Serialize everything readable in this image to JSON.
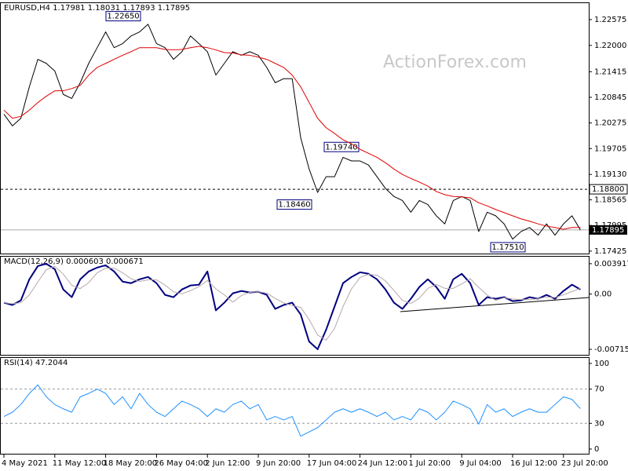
{
  "chart_data": [
    {
      "type": "line",
      "title": "EURUSD,H4 1.17981 1.18031 1.17893 1.17895",
      "watermark": "ActionForex.com",
      "categories": [
        "4 May 2021",
        null,
        null,
        null,
        null,
        null,
        "11 May 12:00",
        null,
        null,
        null,
        null,
        null,
        "18 May 20:00",
        null,
        null,
        null,
        null,
        null,
        "26 May 04:00",
        null,
        null,
        null,
        null,
        null,
        "2 Jun 12:00",
        null,
        null,
        null,
        null,
        null,
        "9 Jun 20:00",
        null,
        null,
        null,
        null,
        null,
        "17 Jun 04:00",
        null,
        null,
        null,
        null,
        null,
        "24 Jun 12:00",
        null,
        null,
        null,
        null,
        null,
        "1 Jul 20:00",
        null,
        null,
        null,
        null,
        null,
        "9 Jul 04:00",
        null,
        null,
        null,
        null,
        null,
        "16 Jul 12:00",
        null,
        null,
        null,
        null,
        null,
        "23 Jul 20:00",
        null,
        null
      ],
      "series": [
        {
          "color": "#000000",
          "values": [
            1.2047,
            1.2021,
            1.2038,
            1.2108,
            1.2169,
            1.216,
            1.2143,
            1.2091,
            1.2082,
            1.2117,
            1.216,
            1.2195,
            1.223,
            1.2195,
            1.2204,
            1.2221,
            1.223,
            1.2247,
            1.2204,
            1.2195,
            1.2169,
            1.2186,
            1.2221,
            1.2204,
            1.2186,
            1.2134,
            1.216,
            1.2186,
            1.2178,
            1.2186,
            1.2178,
            1.2151,
            1.2117,
            1.2126,
            1.2126,
            1.1995,
            1.1925,
            1.1873,
            1.1908,
            1.1908,
            1.1951,
            1.1943,
            1.1943,
            1.1934,
            1.1908,
            1.1882,
            1.1864,
            1.1855,
            1.1829,
            1.1855,
            1.1846,
            1.1821,
            1.1803,
            1.1855,
            1.1864,
            1.1855,
            1.1786,
            1.1829,
            1.1821,
            1.1803,
            1.1769,
            1.1786,
            1.1795,
            1.1778,
            1.1803,
            1.1778,
            1.1803,
            1.1821,
            1.17895
          ]
        },
        {
          "color": "#e00000",
          "values": [
            1.2056,
            1.2038,
            1.2042,
            1.2056,
            1.2073,
            1.2087,
            1.2099,
            1.2099,
            1.2104,
            1.2111,
            1.2134,
            1.2151,
            1.216,
            1.2169,
            1.2178,
            1.2186,
            1.2195,
            1.2195,
            1.2195,
            1.2191,
            1.219,
            1.2191,
            1.2195,
            1.2198,
            1.2195,
            1.219,
            1.2184,
            1.2183,
            1.2179,
            1.2178,
            1.2174,
            1.2169,
            1.216,
            1.2151,
            1.2134,
            1.2108,
            1.2073,
            1.2038,
            1.2017,
            1.2004,
            1.199,
            1.1981,
            1.1969,
            1.196,
            1.1951,
            1.1939,
            1.1925,
            1.1913,
            1.1904,
            1.1896,
            1.1887,
            1.1875,
            1.1868,
            1.1864,
            1.1863,
            1.1861,
            1.185,
            1.1843,
            1.1835,
            1.1828,
            1.1821,
            1.1814,
            1.1809,
            1.1803,
            1.1798,
            1.1795,
            1.1791,
            1.1795,
            1.1795
          ]
        }
      ],
      "ylim": [
        1.1737,
        1.2294
      ],
      "yticks": [
        1.22575,
        {
          "value": 1.22,
          "label": "1.22000"
        },
        1.21415,
        1.20845,
        1.20275,
        1.19705,
        {
          "value": 1.1913,
          "label": "1.19130"
        },
        1.18565,
        1.17995,
        1.17425
      ],
      "annotations": [
        {
          "value": 1.2265,
          "label": "1.22650"
        },
        {
          "value": 1.1974,
          "label": "1.19740"
        },
        {
          "value": 1.1846,
          "label": "1.18460"
        },
        {
          "value": 1.1751,
          "label": "1.17510"
        }
      ],
      "hlines": [
        {
          "value": 1.188,
          "label": "1.18800"
        }
      ],
      "last": {
        "value": 1.17895,
        "label": "1.17895"
      }
    },
    {
      "type": "line",
      "title": "MACD(12,26,9) 0.000603 0.000671",
      "series": [
        {
          "color": "#000080",
          "values": [
            -0.00112,
            -0.00142,
            -0.00082,
            0.0019,
            0.00361,
            0.00391,
            0.00321,
            0.00059,
            -0.00041,
            0.0019,
            0.00291,
            0.00341,
            0.00371,
            0.00291,
            0.0016,
            0.0014,
            0.0019,
            0.0022,
            0.0014,
            -0.00011,
            -0.00041,
            0.00059,
            0.0011,
            0.0012,
            0.00291,
            -0.00212,
            -0.00112,
            9e-05,
            0.00039,
            0.00019,
            0.00029,
            -0.00011,
            -0.00192,
            -0.00142,
            -0.00112,
            -0.00263,
            -0.00615,
            -0.00714,
            -0.00463,
            -0.00162,
            0.0014,
            0.0022,
            0.00281,
            0.00261,
            0.0019,
            0.00059,
            -0.00112,
            -0.00192,
            -0.00062,
            0.0009,
            0.0019,
            0.0009,
            -0.00062,
            0.0019,
            0.00261,
            0.0014,
            -0.00142,
            -0.00041,
            -0.00062,
            -0.00041,
            -0.00092,
            -0.00082,
            -0.00041,
            -0.00062,
            -0.00011,
            -0.00062,
            0.00039,
            0.0012,
            0.00059
          ]
        },
        {
          "color": "#b8a8a8",
          "values": [
            -0.00112,
            -0.00127,
            -0.00112,
            -0.00011,
            0.00156,
            0.00314,
            0.00358,
            0.00257,
            0.00113,
            0.00069,
            0.00147,
            0.00274,
            0.00334,
            0.00334,
            0.00274,
            0.00197,
            0.00163,
            0.00183,
            0.00183,
            0.00116,
            0.00029,
            2e-05,
            0.00043,
            0.00096,
            0.00174,
            0.00066,
            -0.00011,
            -0.00105,
            -0.00021,
            0.00022,
            0.00029,
            0.00012,
            -0.00058,
            -0.00115,
            -0.00149,
            -0.00172,
            -0.0033,
            -0.00531,
            -0.00597,
            -0.00446,
            -0.00162,
            0.00066,
            0.00214,
            0.00254,
            0.00244,
            0.0017,
            0.00046,
            -0.00082,
            -0.00122,
            -0.00055,
            0.00073,
            0.00123,
            0.00073,
            0.00073,
            0.0013,
            0.00197,
            0.00086,
            -0.00014,
            -0.00082,
            -0.00048,
            -0.00065,
            -0.00072,
            -0.00072,
            -0.00062,
            -0.00038,
            -0.00045,
            -0.00011,
            0.00032,
            0.00073
          ]
        }
      ],
      "ylim": [
        -0.00786,
        0.00482
      ],
      "yticks": [
        0.003917,
        {
          "value": 0,
          "label": "0.00"
        },
        -0.007152
      ]
    },
    {
      "type": "line",
      "title": "RSI(14) 47.2044",
      "series": [
        {
          "color": "#1e90ff",
          "values": [
            38,
            43,
            52,
            65,
            75,
            61,
            52,
            47,
            43,
            61,
            65,
            70,
            65,
            52,
            61,
            47,
            65,
            52,
            43,
            38,
            47,
            56,
            52,
            47,
            38,
            47,
            43,
            52,
            56,
            47,
            52,
            34,
            38,
            34,
            38,
            15,
            20,
            25,
            34,
            43,
            47,
            43,
            47,
            43,
            38,
            43,
            34,
            38,
            34,
            47,
            43,
            34,
            43,
            56,
            52,
            47,
            29,
            52,
            43,
            47,
            38,
            43,
            47,
            43,
            43,
            52,
            61,
            58,
            47.2
          ]
        }
      ],
      "ylim": [
        -5.5,
        106.4
      ],
      "yticks": [
        100,
        70,
        30,
        0
      ],
      "levels": [
        70,
        30
      ]
    }
  ]
}
